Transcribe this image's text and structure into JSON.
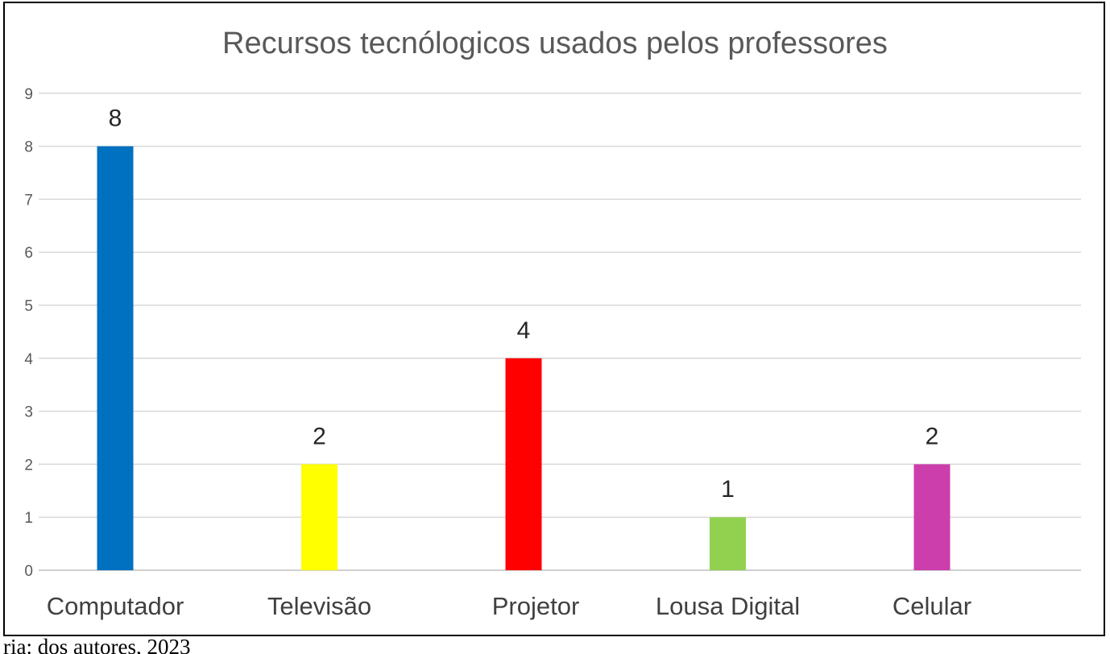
{
  "chart_data": {
    "type": "bar",
    "title": "Recursos tecnólogicos usados pelos professores",
    "categories": [
      "Computador",
      "Televisão",
      "Projetor",
      "Lousa Digital",
      "Celular"
    ],
    "values": [
      8,
      2,
      4,
      1,
      2
    ],
    "colors": [
      "#0070C0",
      "#FFFF00",
      "#FF0000",
      "#92D050",
      "#CC3EAB"
    ],
    "data_labels": [
      "8",
      "2",
      "4",
      "1",
      "2"
    ],
    "ylim": [
      0,
      9
    ],
    "yticks": [
      "0",
      "1",
      "2",
      "3",
      "4",
      "5",
      "6",
      "7",
      "8",
      "9"
    ],
    "grid": true,
    "legend": "none",
    "xlabel": "",
    "ylabel": ""
  },
  "caption": "ria: dos autores, 2023"
}
